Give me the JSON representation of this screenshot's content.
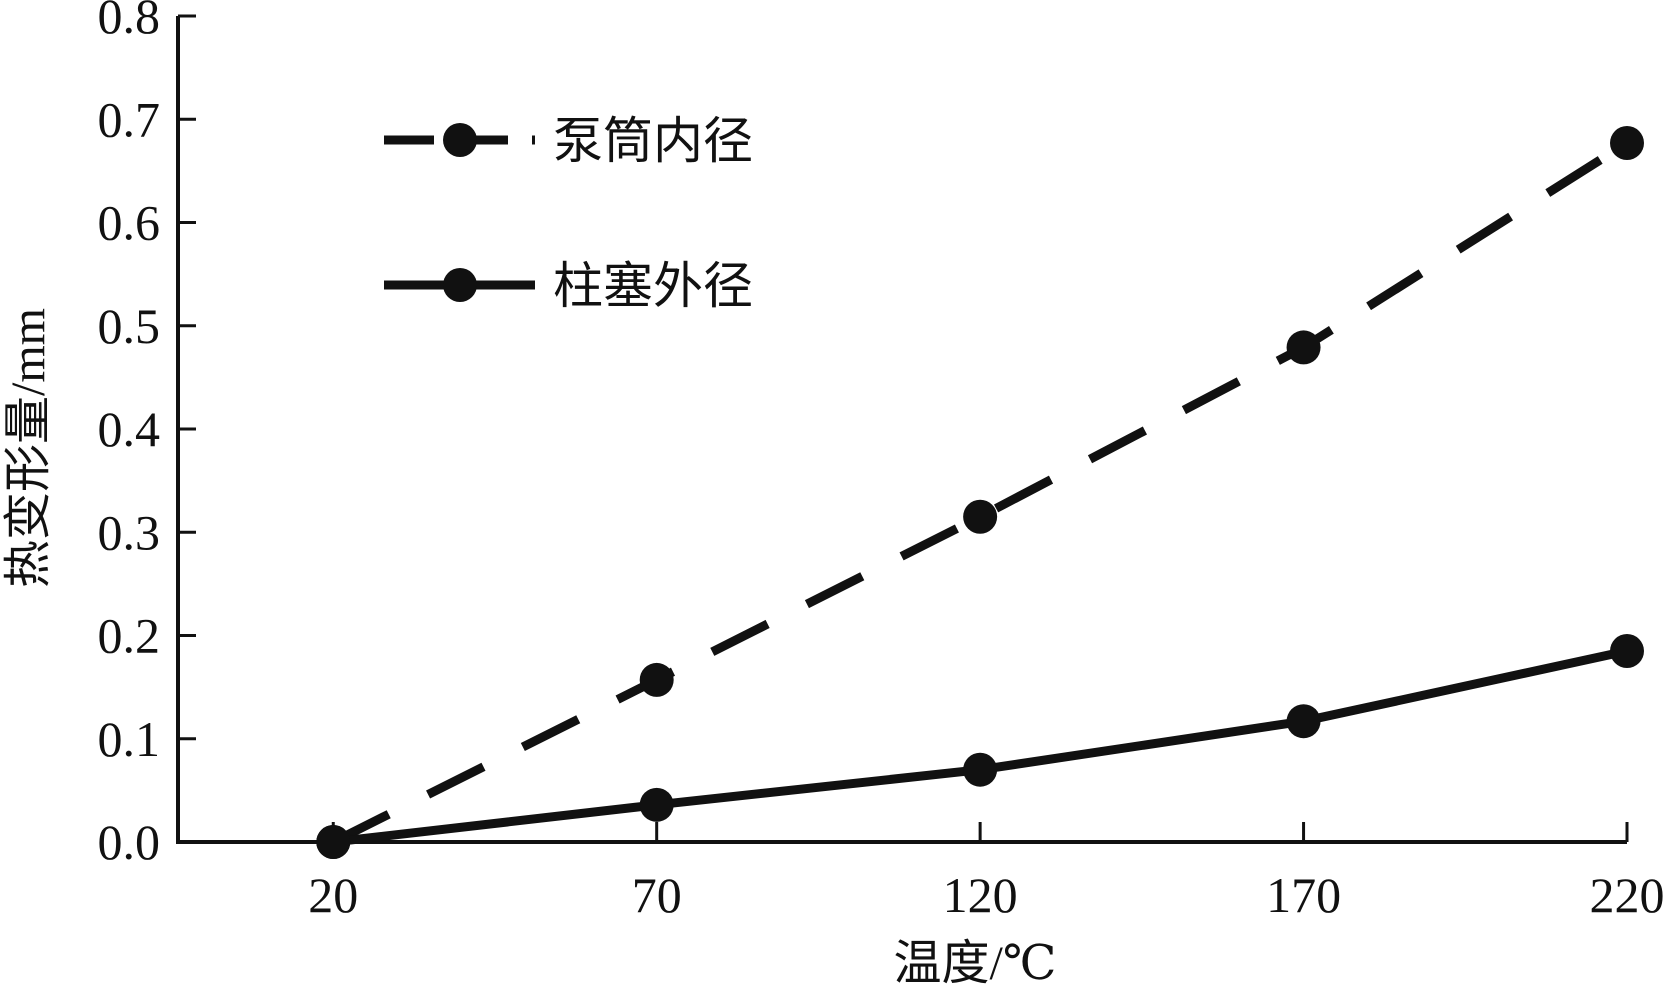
{
  "chart_data": {
    "type": "line",
    "xlabel": "温度/℃",
    "ylabel": "热变形量/mm",
    "x": [
      20,
      70,
      120,
      170,
      220
    ],
    "x_ticks": [
      "20",
      "70",
      "120",
      "170",
      "220"
    ],
    "y_ticks": [
      "0.0",
      "0.1",
      "0.2",
      "0.3",
      "0.4",
      "0.5",
      "0.6",
      "0.7",
      "0.8"
    ],
    "xlim": [
      -4,
      220
    ],
    "ylim": [
      0,
      0.8
    ],
    "grid": false,
    "legend_position": "top-left",
    "series": [
      {
        "name": "泵筒内径",
        "line_style": "dashed",
        "marker": "circle",
        "color": "#111111",
        "values": [
          0.0,
          0.157,
          0.315,
          0.479,
          0.677
        ]
      },
      {
        "name": "柱塞外径",
        "line_style": "solid",
        "marker": "circle",
        "color": "#111111",
        "values": [
          0.0,
          0.036,
          0.07,
          0.117,
          0.185
        ]
      }
    ]
  }
}
